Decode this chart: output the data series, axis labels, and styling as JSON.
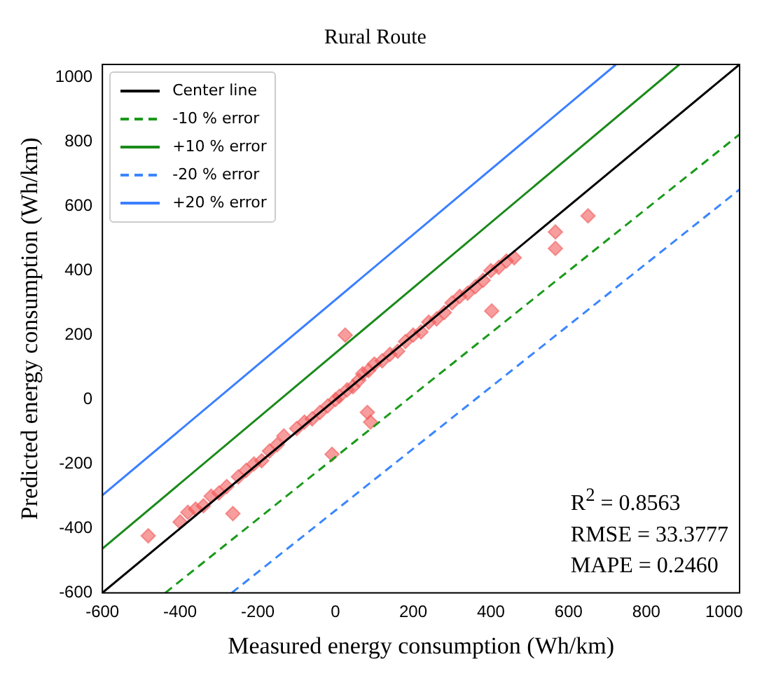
{
  "chart_data": {
    "type": "scatter",
    "title": "Rural Route",
    "xlabel": "Measured energy consumption (Wh/km)",
    "ylabel": "Predicted energy consumption (Wh/km)",
    "xlim": [
      -600,
      1040
    ],
    "ylim": [
      -600,
      1040
    ],
    "xticks": [
      -600,
      -400,
      -200,
      0,
      200,
      400,
      600,
      800,
      1000
    ],
    "yticks": [
      -600,
      -400,
      -200,
      0,
      200,
      400,
      600,
      800,
      1000
    ],
    "grid": false,
    "legend": "top left",
    "annotations": [
      "R$^{2}$ = 0.8563",
      "RMSE = 33.3777",
      "MAPE = 0.2460"
    ],
    "series": [
      {
        "type": "scatter",
        "color": "#f25b5b",
        "marker": "diamond",
        "x": [
          -482,
          -400,
          -380,
          -360,
          -340,
          -320,
          -300,
          -280,
          -264,
          -250,
          -230,
          -210,
          -190,
          -170,
          -150,
          -133,
          -100,
          -80,
          -60,
          -40,
          -20,
          -9,
          0,
          10,
          25,
          30,
          45,
          60,
          70,
          82,
          85,
          90,
          100,
          120,
          140,
          160,
          180,
          200,
          220,
          240,
          260,
          280,
          300,
          320,
          340,
          360,
          380,
          400,
          402,
          420,
          440,
          460,
          566,
          566,
          650
        ],
        "values": [
          -423,
          -380,
          -350,
          -340,
          -330,
          -300,
          -290,
          -270,
          -354,
          -240,
          -220,
          -200,
          -190,
          -160,
          -140,
          -113,
          -90,
          -70,
          -60,
          -40,
          -20,
          -170,
          0,
          10,
          200,
          30,
          40,
          60,
          80,
          -40,
          90,
          -70,
          110,
          120,
          140,
          150,
          180,
          200,
          210,
          240,
          250,
          270,
          300,
          320,
          330,
          350,
          370,
          400,
          275,
          410,
          430,
          440,
          520,
          469,
          570
        ]
      },
      {
        "type": "line",
        "name": "Center line",
        "color": "#000000",
        "line_style": "solid",
        "x": [
          -600,
          1040
        ],
        "values": [
          -600,
          1040
        ]
      },
      {
        "type": "line",
        "name": "-10 % error",
        "color": "#1a9a1a",
        "line_style": "dashed",
        "x": [
          -438,
          1040
        ],
        "values": [
          -600,
          823
        ]
      },
      {
        "type": "line",
        "name": "+10 % error",
        "color": "#1a8a1a",
        "line_style": "solid",
        "x": [
          -600,
          885
        ],
        "values": [
          -463,
          1040
        ]
      },
      {
        "type": "line",
        "name": "-20 % error",
        "color": "#3a86ff",
        "line_style": "dashed",
        "x": [
          -267,
          1040
        ],
        "values": [
          -600,
          652
        ]
      },
      {
        "type": "line",
        "name": "+20 % error",
        "color": "#3a7fff",
        "line_style": "solid",
        "x": [
          -600,
          722
        ],
        "values": [
          -297,
          1040
        ]
      }
    ]
  }
}
